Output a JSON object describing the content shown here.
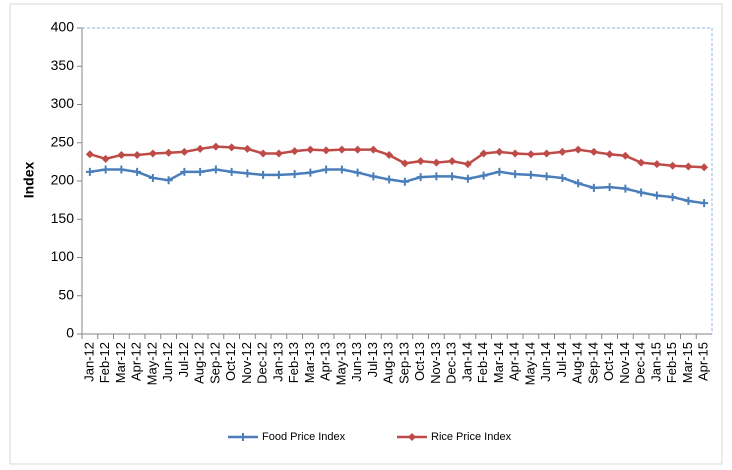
{
  "chart_data": {
    "type": "line",
    "y_label": "Index",
    "categories": [
      "Jan-12",
      "Feb-12",
      "Mar-12",
      "Apr-12",
      "May-12",
      "Jun-12",
      "Jul-12",
      "Aug-12",
      "Sep-12",
      "Oct-12",
      "Nov-12",
      "Dec-12",
      "Jan-13",
      "Feb-13",
      "Mar-13",
      "Apr-13",
      "May-13",
      "Jun-13",
      "Jul-13",
      "Aug-13",
      "Sep-13",
      "Oct-13",
      "Nov-13",
      "Dec-13",
      "Jan-14",
      "Feb-14",
      "Mar-14",
      "Apr-14",
      "May-14",
      "Jun-14",
      "Jul-14",
      "Aug-14",
      "Sep-14",
      "Oct-14",
      "Nov-14",
      "Dec-14",
      "Jan-15",
      "Feb-15",
      "Mar-15",
      "Apr-15"
    ],
    "series": [
      {
        "name": "Food Price Index",
        "color": "#4a7ebb",
        "marker": "plus",
        "values": [
          212,
          215,
          215,
          212,
          204,
          201,
          212,
          212,
          215,
          212,
          210,
          208,
          208,
          209,
          211,
          215,
          215,
          211,
          206,
          202,
          199,
          205,
          206,
          206,
          203,
          207,
          212,
          209,
          208,
          206,
          204,
          197,
          191,
          192,
          190,
          185,
          181,
          179,
          174,
          171
        ]
      },
      {
        "name": "Rice Price Index",
        "color": "#be4b48",
        "marker": "diamond",
        "values": [
          235,
          229,
          234,
          234,
          236,
          237,
          238,
          242,
          245,
          244,
          242,
          236,
          236,
          239,
          241,
          240,
          241,
          241,
          241,
          234,
          223,
          226,
          224,
          226,
          222,
          236,
          238,
          236,
          235,
          236,
          238,
          241,
          238,
          235,
          233,
          224,
          222,
          220,
          219,
          218
        ]
      }
    ],
    "ylim": [
      0,
      400
    ],
    "yticks": [
      0,
      50,
      100,
      150,
      200,
      250,
      300,
      350,
      400
    ],
    "grid": false,
    "legend": "bottom"
  }
}
